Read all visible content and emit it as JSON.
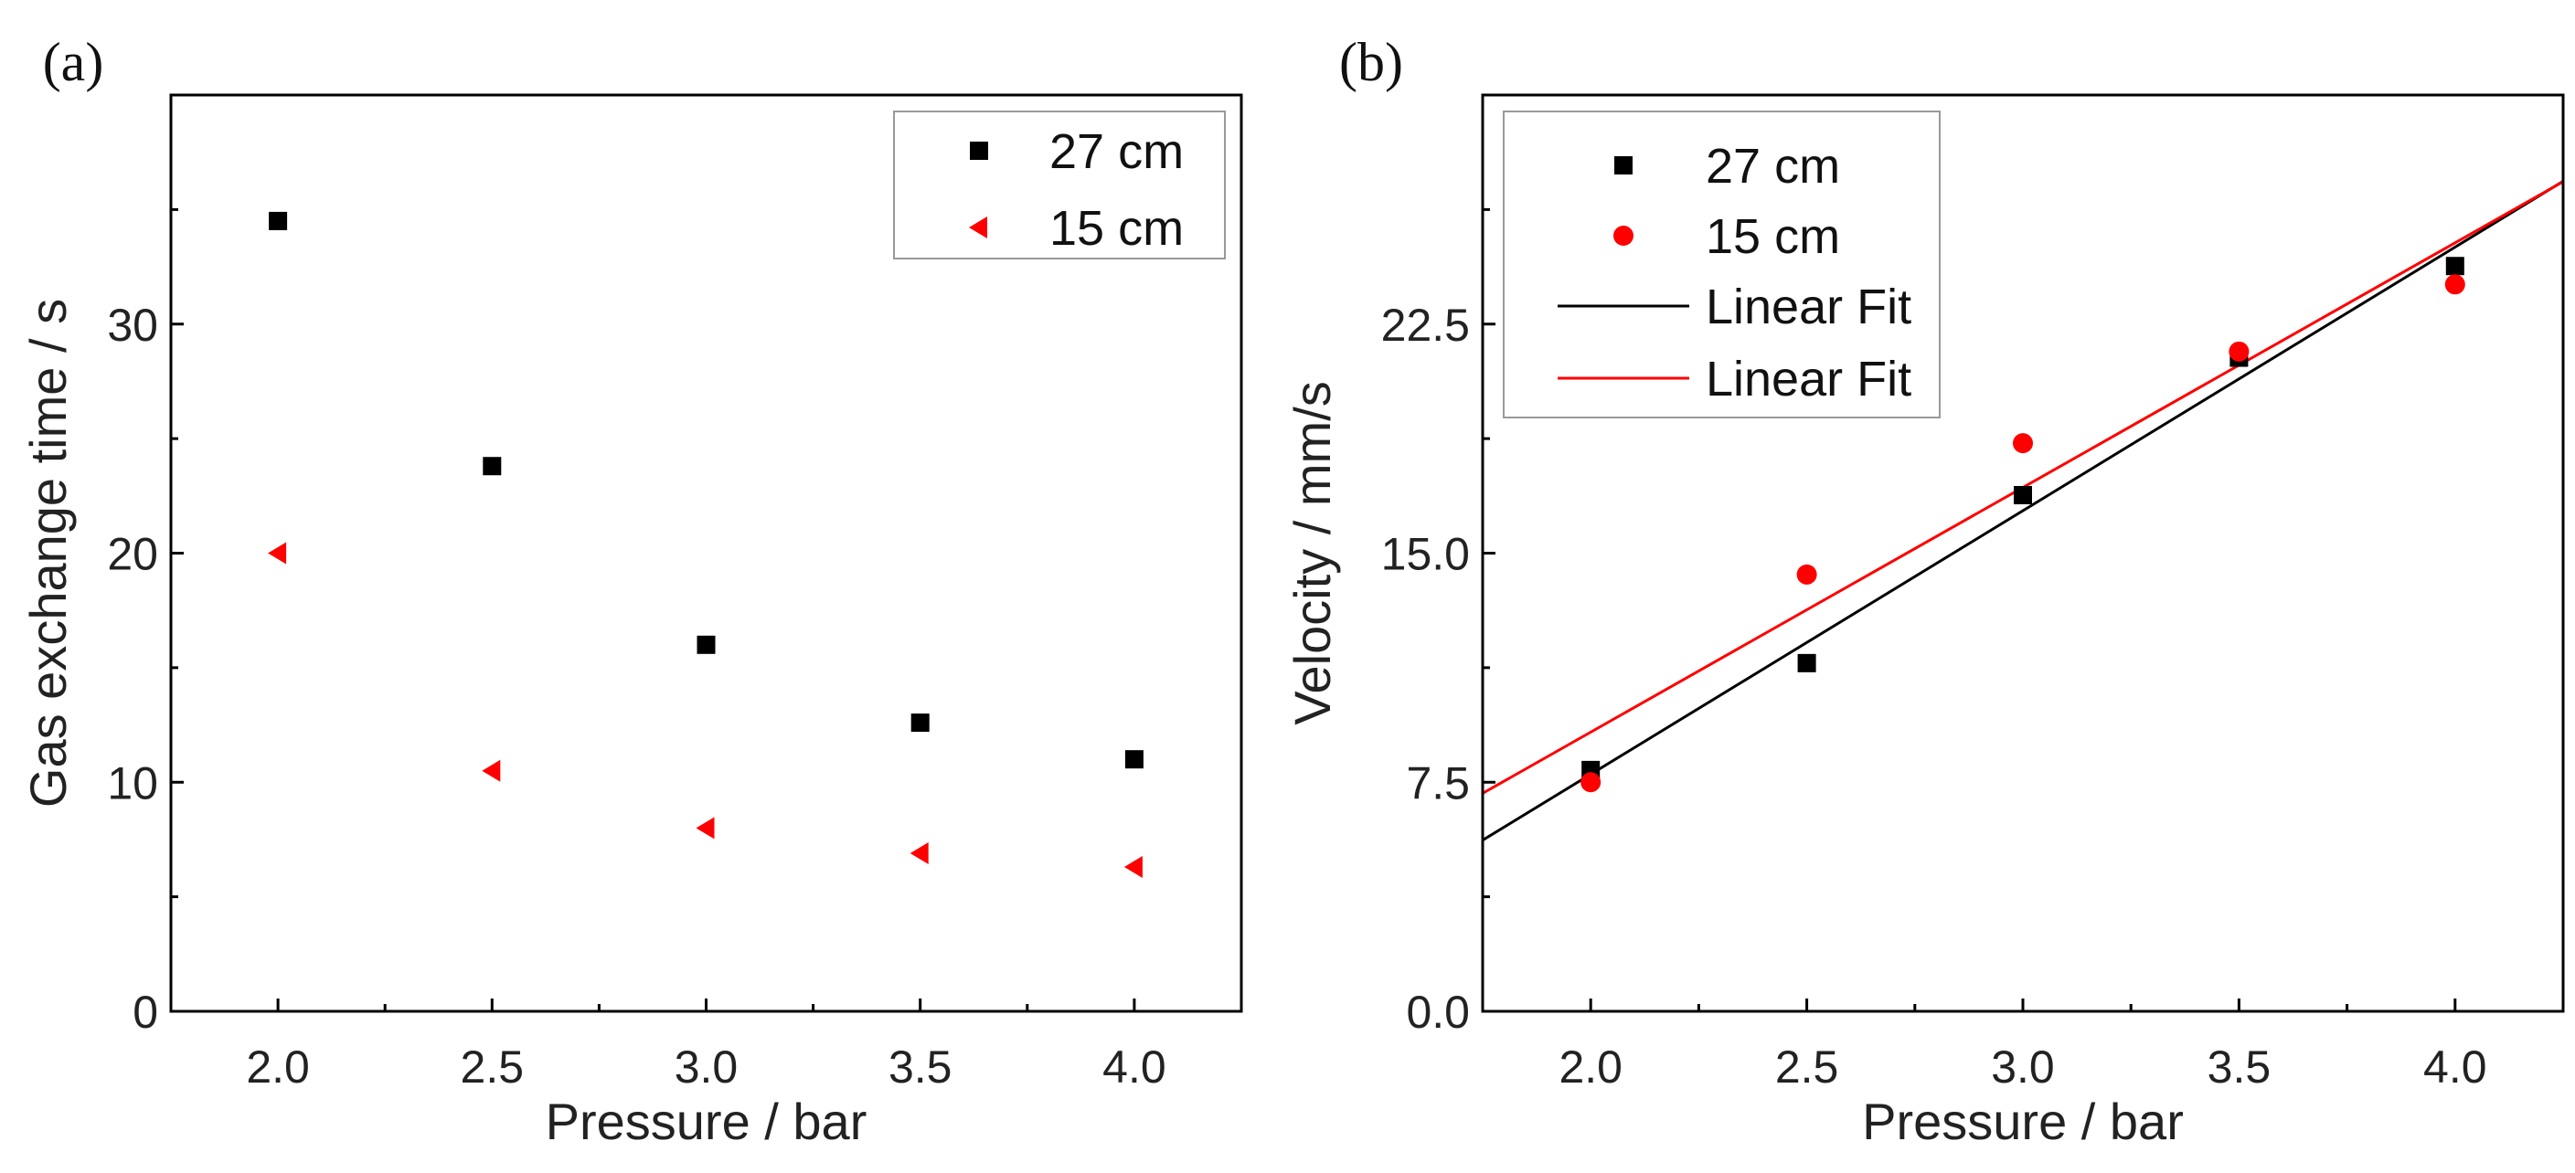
{
  "chart_data": [
    {
      "panel_label": "(a)",
      "type": "scatter",
      "xlabel": "Pressure / bar",
      "ylabel": "Gas exchange time / s",
      "xlim": [
        1.75,
        4.25
      ],
      "ylim": [
        0,
        40
      ],
      "xticks": [
        "2.0",
        "2.5",
        "3.0",
        "3.5",
        "4.0"
      ],
      "yticks": [
        "0",
        "10",
        "20",
        "30"
      ],
      "legend_position": "top-right",
      "series": [
        {
          "name": "27 cm",
          "marker": "square",
          "color": "#000000",
          "x": [
            2.0,
            2.5,
            3.0,
            3.5,
            4.0
          ],
          "y": [
            34.5,
            23.8,
            16.0,
            12.6,
            11.0
          ]
        },
        {
          "name": "15 cm",
          "marker": "triangle-left",
          "color": "#ff0000",
          "x": [
            2.0,
            2.5,
            3.0,
            3.5,
            4.0
          ],
          "y": [
            20.0,
            10.5,
            8.0,
            6.9,
            6.3
          ]
        }
      ]
    },
    {
      "panel_label": "(b)",
      "type": "scatter",
      "xlabel": "Pressure / bar",
      "ylabel": "Velocity / mm/s",
      "xlim": [
        1.75,
        4.25
      ],
      "ylim": [
        0,
        30
      ],
      "xticks": [
        "2.0",
        "2.5",
        "3.0",
        "3.5",
        "4.0"
      ],
      "yticks": [
        "0.0",
        "7.5",
        "15.0",
        "22.5"
      ],
      "legend_position": "top-left",
      "series": [
        {
          "name": "27 cm",
          "marker": "square",
          "color": "#000000",
          "x": [
            2.0,
            2.5,
            3.0,
            3.5,
            4.0
          ],
          "y": [
            7.9,
            11.4,
            16.9,
            21.4,
            24.4
          ]
        },
        {
          "name": "15 cm",
          "marker": "circle",
          "color": "#ff0000",
          "x": [
            2.0,
            2.5,
            3.0,
            3.5,
            4.0
          ],
          "y": [
            7.5,
            14.3,
            18.6,
            21.6,
            23.8
          ]
        }
      ],
      "fits": [
        {
          "name": "Linear Fit",
          "color": "#000000",
          "slope": 8.63,
          "intercept": -9.5
        },
        {
          "name": "Linear Fit",
          "color": "#ff0000",
          "slope": 8.01,
          "intercept": -6.88
        }
      ]
    }
  ]
}
